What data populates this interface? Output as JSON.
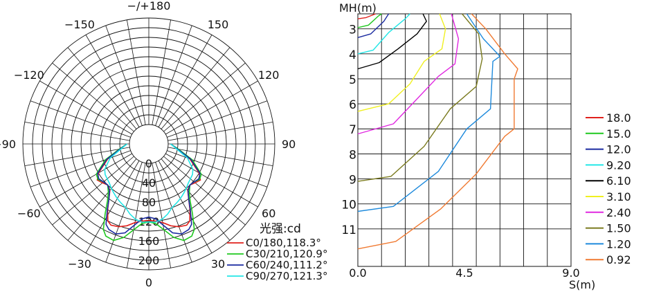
{
  "chart_data": [
    {
      "type": "polar",
      "unit_label": "光强:cd",
      "angle_labels": [
        {
          "angle": 180,
          "text": "−/+180"
        },
        {
          "angle": -150,
          "text": "−150"
        },
        {
          "angle": 150,
          "text": "150"
        },
        {
          "angle": -120,
          "text": "−120"
        },
        {
          "angle": 120,
          "text": "120"
        },
        {
          "angle": -90,
          "text": "−90"
        },
        {
          "angle": 90,
          "text": "90"
        },
        {
          "angle": -60,
          "text": "−60"
        },
        {
          "angle": 60,
          "text": "60"
        },
        {
          "angle": -30,
          "text": "−30"
        },
        {
          "angle": 30,
          "text": "30"
        },
        {
          "angle": 0,
          "text": "0"
        }
      ],
      "radial_ticks": [
        0,
        40,
        80,
        120,
        160,
        200
      ],
      "rmax": 220,
      "grid_rings": 11,
      "spoke_step_deg": 10,
      "series": [
        {
          "name": "C0/180,118.3°",
          "color": "#e0201c",
          "angles": [
            0,
            5,
            10,
            15,
            20,
            25,
            28,
            32,
            36,
            40,
            45,
            50,
            55,
            60,
            70,
            80,
            90
          ],
          "values": [
            118,
            120,
            125,
            135,
            142,
            145,
            140,
            120,
            100,
            85,
            80,
            85,
            90,
            80,
            50,
            20,
            5
          ]
        },
        {
          "name": "C30/210,120.9°",
          "color": "#1ec81e",
          "angles": [
            0,
            5,
            10,
            15,
            20,
            25,
            28,
            32,
            36,
            40,
            45,
            50,
            55,
            60,
            70,
            80,
            90
          ],
          "values": [
            121,
            125,
            140,
            160,
            172,
            170,
            160,
            130,
            105,
            90,
            80,
            82,
            88,
            85,
            55,
            22,
            5
          ]
        },
        {
          "name": "C60/240,111.2°",
          "color": "#1a2aa0",
          "angles": [
            0,
            5,
            10,
            15,
            20,
            25,
            28,
            32,
            36,
            40,
            45,
            50,
            55,
            60,
            70,
            80,
            90
          ],
          "values": [
            111,
            115,
            130,
            150,
            158,
            155,
            148,
            122,
            100,
            86,
            80,
            82,
            86,
            82,
            52,
            20,
            5
          ]
        },
        {
          "name": "C90/270,121.3°",
          "color": "#22e6e6",
          "angles": [
            0,
            5,
            10,
            15,
            20,
            25,
            28,
            32,
            36,
            40,
            45,
            50,
            55,
            60,
            70,
            80,
            90
          ],
          "values": [
            121,
            122,
            118,
            110,
            100,
            95,
            92,
            88,
            84,
            80,
            75,
            72,
            70,
            65,
            45,
            18,
            5
          ]
        }
      ]
    },
    {
      "type": "line",
      "xlabel": "S(m)",
      "ylabel": "MH(m)",
      "xlim": [
        0,
        9
      ],
      "ylim": [
        2.4,
        12.5
      ],
      "x_ticks": [
        0,
        4.5,
        9
      ],
      "x_tick_labels": [
        "0.0",
        "4.5",
        "9.0"
      ],
      "y_ticks": [
        3,
        4,
        5,
        6,
        7,
        8,
        9,
        10,
        11
      ],
      "y_tick_labels": [
        "3",
        "4",
        "5",
        "6",
        "7",
        "8",
        "9",
        "10",
        "11"
      ],
      "grid": true,
      "series": [
        {
          "name": "18.0",
          "color": "#e0201c",
          "points": [
            [
              0,
              2.6
            ],
            [
              0.35,
              2.55
            ],
            [
              0.75,
              2.4
            ]
          ]
        },
        {
          "name": "15.0",
          "color": "#1ec81e",
          "points": [
            [
              0,
              2.95
            ],
            [
              0.45,
              2.85
            ],
            [
              0.85,
              2.5
            ],
            [
              1.0,
              2.4
            ]
          ]
        },
        {
          "name": "12.0",
          "color": "#1a2aa0",
          "points": [
            [
              0,
              3.35
            ],
            [
              0.55,
              3.2
            ],
            [
              1.1,
              2.7
            ],
            [
              1.3,
              2.4
            ]
          ]
        },
        {
          "name": "9.20",
          "color": "#22e6e6",
          "points": [
            [
              0,
              4.0
            ],
            [
              0.65,
              3.85
            ],
            [
              1.3,
              3.15
            ],
            [
              2.0,
              2.6
            ],
            [
              2.2,
              2.4
            ]
          ]
        },
        {
          "name": "6.10",
          "color": "#000000",
          "points": [
            [
              0,
              4.6
            ],
            [
              0.9,
              4.35
            ],
            [
              1.7,
              3.8
            ],
            [
              2.5,
              3.2
            ],
            [
              2.9,
              2.7
            ],
            [
              2.75,
              2.4
            ]
          ]
        },
        {
          "name": "3.10",
          "color": "#f0f020",
          "points": [
            [
              0,
              6.3
            ],
            [
              1.3,
              6.0
            ],
            [
              2.2,
              5.2
            ],
            [
              2.8,
              4.3
            ],
            [
              3.55,
              3.8
            ],
            [
              3.7,
              3.0
            ],
            [
              3.45,
              2.4
            ]
          ]
        },
        {
          "name": "2.40",
          "color": "#e028e0",
          "points": [
            [
              0,
              7.2
            ],
            [
              1.5,
              6.8
            ],
            [
              2.5,
              5.8
            ],
            [
              3.4,
              4.9
            ],
            [
              4.1,
              4.4
            ],
            [
              4.25,
              3.4
            ],
            [
              3.95,
              2.4
            ]
          ]
        },
        {
          "name": "1.50",
          "color": "#7a7a1e",
          "points": [
            [
              0,
              9.1
            ],
            [
              1.4,
              8.9
            ],
            [
              2.8,
              7.7
            ],
            [
              3.9,
              6.2
            ],
            [
              5.0,
              5.3
            ],
            [
              5.25,
              4.2
            ],
            [
              5.1,
              3.2
            ],
            [
              4.4,
              2.4
            ]
          ]
        },
        {
          "name": "1.20",
          "color": "#1e8adc",
          "points": [
            [
              0,
              10.3
            ],
            [
              1.5,
              10.1
            ],
            [
              3.4,
              8.7
            ],
            [
              4.6,
              7.0
            ],
            [
              5.6,
              6.2
            ],
            [
              5.7,
              4.3
            ],
            [
              6.0,
              4.1
            ],
            [
              5.3,
              3.4
            ],
            [
              4.6,
              2.4
            ]
          ]
        },
        {
          "name": "0.92",
          "color": "#f07a32",
          "points": [
            [
              0,
              11.8
            ],
            [
              1.6,
              11.5
            ],
            [
              3.5,
              10.2
            ],
            [
              5.0,
              8.8
            ],
            [
              6.2,
              7.3
            ],
            [
              6.6,
              7.0
            ],
            [
              6.6,
              5.0
            ],
            [
              6.75,
              4.6
            ],
            [
              6.2,
              4.0
            ],
            [
              5.4,
              3.0
            ],
            [
              4.8,
              2.4
            ]
          ]
        }
      ]
    }
  ]
}
